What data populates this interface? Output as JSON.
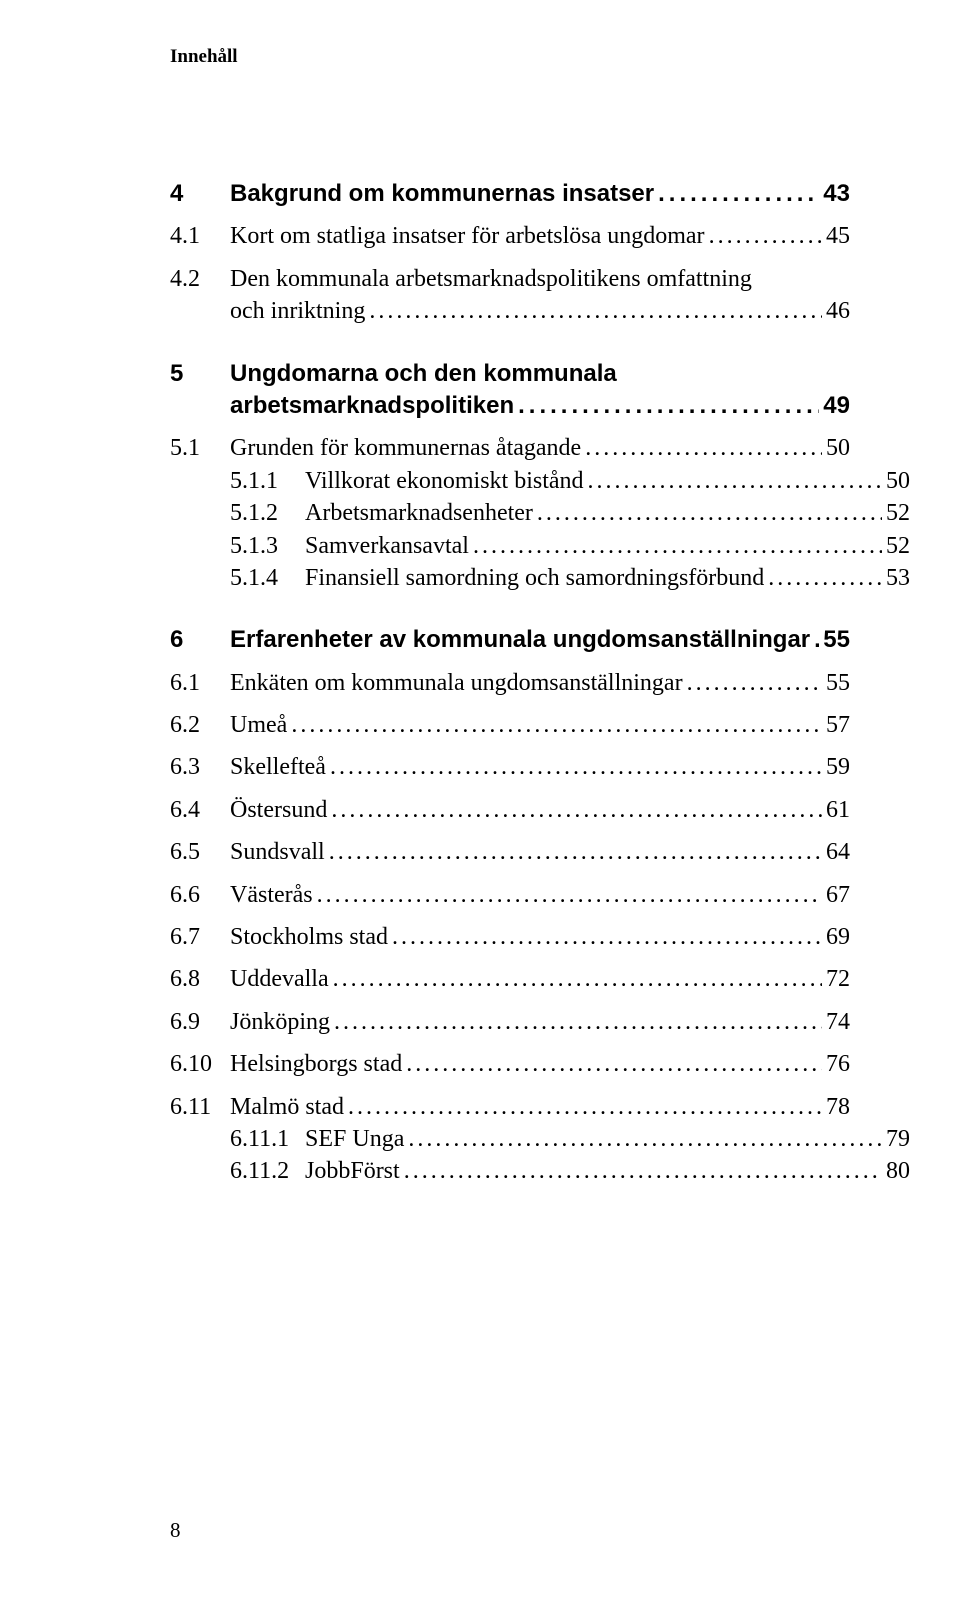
{
  "running_head": "Innehåll",
  "page_number": "8",
  "toc": {
    "s4": {
      "num": "4",
      "title": "Bakgrund om kommunernas insatser",
      "page": "43",
      "s4_1": {
        "num": "4.1",
        "title": "Kort om statliga insatser för arbetslösa ungdomar",
        "page": "45"
      },
      "s4_2": {
        "num": "4.2",
        "title_line1": "Den kommunala arbetsmarknadspolitikens omfattning",
        "title_line2": "och inriktning",
        "page": "46"
      }
    },
    "s5": {
      "num": "5",
      "title_line1": "Ungdomarna och den kommunala",
      "title_line2": "arbetsmarknadspolitiken",
      "page": "49",
      "s5_1": {
        "num": "5.1",
        "title": "Grunden för kommunernas åtagande",
        "page": "50"
      },
      "s5_1_1": {
        "num": "5.1.1",
        "title": "Villkorat ekonomiskt bistånd",
        "page": "50"
      },
      "s5_1_2": {
        "num": "5.1.2",
        "title": "Arbetsmarknadsenheter",
        "page": "52"
      },
      "s5_1_3": {
        "num": "5.1.3",
        "title": "Samverkansavtal",
        "page": "52"
      },
      "s5_1_4": {
        "num": "5.1.4",
        "title": "Finansiell samordning och samordningsförbund",
        "page": "53"
      }
    },
    "s6": {
      "num": "6",
      "title": "Erfarenheter av kommunala ungdomsanställningar",
      "page": "55",
      "s6_1": {
        "num": "6.1",
        "title": "Enkäten om kommunala ungdomsanställningar",
        "page": "55"
      },
      "s6_2": {
        "num": "6.2",
        "title": "Umeå",
        "page": "57"
      },
      "s6_3": {
        "num": "6.3",
        "title": "Skellefteå",
        "page": "59"
      },
      "s6_4": {
        "num": "6.4",
        "title": "Östersund",
        "page": "61"
      },
      "s6_5": {
        "num": "6.5",
        "title": "Sundsvall",
        "page": "64"
      },
      "s6_6": {
        "num": "6.6",
        "title": "Västerås",
        "page": "67"
      },
      "s6_7": {
        "num": "6.7",
        "title": "Stockholms stad",
        "page": "69"
      },
      "s6_8": {
        "num": "6.8",
        "title": "Uddevalla",
        "page": "72"
      },
      "s6_9": {
        "num": "6.9",
        "title": "Jönköping",
        "page": "74"
      },
      "s6_10": {
        "num": "6.10",
        "title": "Helsingborgs stad",
        "page": "76"
      },
      "s6_11": {
        "num": "6.11",
        "title": "Malmö stad",
        "page": "78"
      },
      "s6_11_1": {
        "num": "6.11.1",
        "title": "SEF Unga",
        "page": "79"
      },
      "s6_11_2": {
        "num": "6.11.2",
        "title": "JobbFörst",
        "page": "80"
      }
    }
  }
}
